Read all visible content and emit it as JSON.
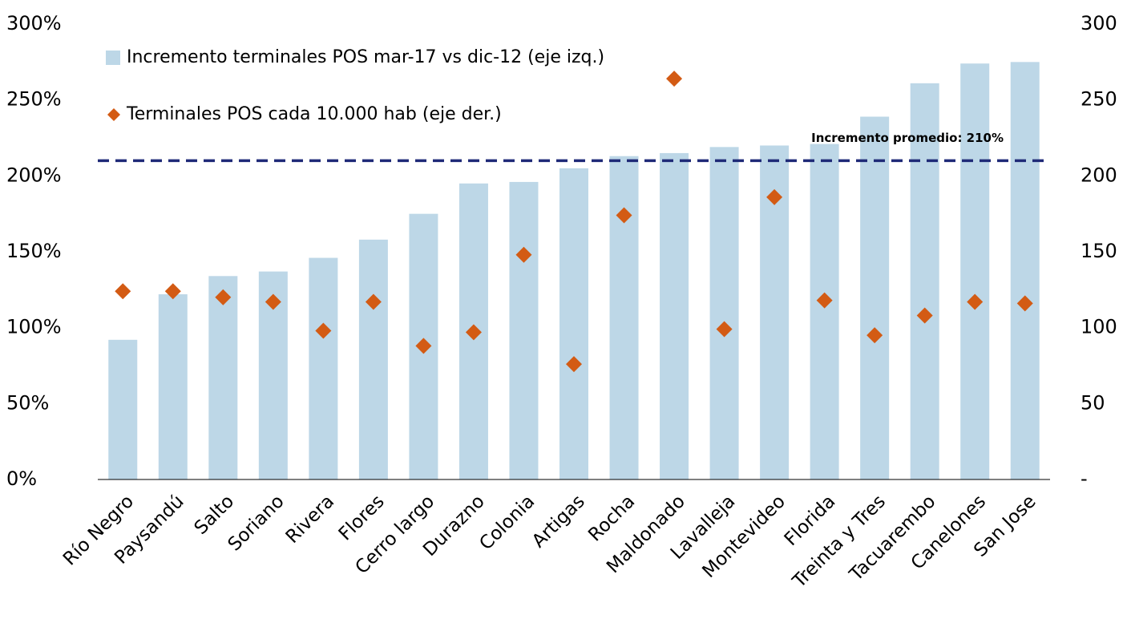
{
  "chart_data": {
    "type": "bar",
    "categories": [
      "Río Negro",
      "Paysandú",
      "Salto",
      "Soriano",
      "Rivera",
      "Flores",
      "Cerro largo",
      "Durazno",
      "Colonia",
      "Artigas",
      "Rocha",
      "Maldonado",
      "Lavalleja",
      "Montevideo",
      "Florida",
      "Treinta y Tres",
      "Tacuarembo",
      "Canelones",
      "San Jose"
    ],
    "series": [
      {
        "name": "Incremento terminales POS mar-17 vs dic-12 (eje izq.)",
        "type": "bar",
        "color": "#bdd7e7",
        "values": [
          92,
          122,
          134,
          137,
          146,
          158,
          175,
          195,
          196,
          205,
          213,
          215,
          219,
          220,
          221,
          239,
          261,
          274,
          275
        ]
      },
      {
        "name": "Terminales POS cada 10.000 hab (eje der.)",
        "type": "scatter",
        "axis": "y2",
        "color": "#d35b14",
        "values": [
          124,
          124,
          120,
          117,
          98,
          117,
          88,
          97,
          148,
          76,
          174,
          264,
          99,
          186,
          118,
          95,
          108,
          117,
          116
        ]
      }
    ],
    "ylim": [
      0,
      300
    ],
    "yticks": [
      {
        "value": 0,
        "label": "0%"
      },
      {
        "value": 50,
        "label": "50%"
      },
      {
        "value": 100,
        "label": "100%"
      },
      {
        "value": 150,
        "label": "150%"
      },
      {
        "value": 200,
        "label": "200%"
      },
      {
        "value": 250,
        "label": "250%"
      },
      {
        "value": 300,
        "label": "300%"
      }
    ],
    "y2lim": [
      0,
      300
    ],
    "y2ticks": [
      {
        "value": 0,
        "label": "-"
      },
      50,
      100,
      150,
      200,
      250,
      300
    ],
    "reference_line": {
      "value": 210,
      "label": "Incremento promedio: 210%",
      "color": "#1f2a78"
    },
    "legend": "top-left"
  }
}
